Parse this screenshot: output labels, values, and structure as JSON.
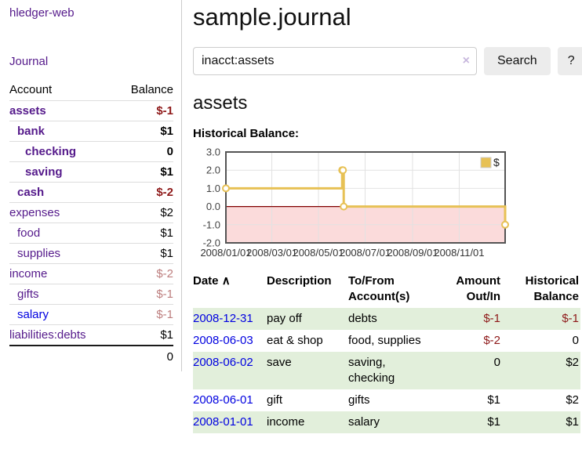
{
  "app": {
    "title": "hledger-web",
    "journal_nav": "Journal"
  },
  "sidebar_accounts": {
    "col_account": "Account",
    "col_balance": "Balance",
    "rows": [
      {
        "name": "assets",
        "balance": "$-1",
        "level": 1,
        "bold": true,
        "neg": "strong"
      },
      {
        "name": "bank",
        "balance": "$1",
        "level": 2,
        "bold": true,
        "neg": ""
      },
      {
        "name": "checking",
        "balance": "0",
        "level": 3,
        "bold": true,
        "neg": ""
      },
      {
        "name": "saving",
        "balance": "$1",
        "level": 3,
        "bold": true,
        "neg": ""
      },
      {
        "name": "cash",
        "balance": "$-2",
        "level": 2,
        "bold": true,
        "neg": "strong"
      },
      {
        "name": "expenses",
        "balance": "$2",
        "level": 1,
        "bold": false,
        "neg": ""
      },
      {
        "name": "food",
        "balance": "$1",
        "level": 2,
        "bold": false,
        "neg": ""
      },
      {
        "name": "supplies",
        "balance": "$1",
        "level": 2,
        "bold": false,
        "neg": ""
      },
      {
        "name": "income",
        "balance": "$-2",
        "level": 1,
        "bold": false,
        "neg": "dim"
      },
      {
        "name": "gifts",
        "balance": "$-1",
        "level": 2,
        "bold": false,
        "neg": "dim"
      },
      {
        "name": "salary",
        "balance": "$-1",
        "level": 2,
        "bold": false,
        "neg": "dim",
        "unvisited": true
      },
      {
        "name": "liabilities:debts",
        "balance": "$1",
        "level": 1,
        "bold": false,
        "neg": ""
      }
    ],
    "total": "0"
  },
  "main": {
    "title": "sample.journal",
    "search": {
      "value": "inacct:assets",
      "clear_icon": "×",
      "search_button": "Search",
      "help_button": "?"
    },
    "account_heading": "assets",
    "chart_heading": "Historical Balance:"
  },
  "chart_data": {
    "type": "line",
    "title": "Historical Balance",
    "step": true,
    "legend": [
      {
        "label": "$",
        "color": "#E7C155"
      }
    ],
    "legend_position": "top-right",
    "grid": true,
    "y_ticks": [
      "3.0",
      "2.0",
      "1.0",
      "0.0",
      "-1.0",
      "-2.0"
    ],
    "ylim": [
      -2,
      3
    ],
    "x_range_days": [
      0,
      365
    ],
    "x_ticks": [
      {
        "label": "2008/01/01",
        "day": 0
      },
      {
        "label": "2008/03/01",
        "day": 60
      },
      {
        "label": "2008/05/01",
        "day": 121
      },
      {
        "label": "2008/07/01",
        "day": 182
      },
      {
        "label": "2008/09/01",
        "day": 244
      },
      {
        "label": "2008/11/01",
        "day": 305
      }
    ],
    "series": [
      {
        "name": "$",
        "points": [
          {
            "date": "2008-01-01",
            "day": 0,
            "value": 1
          },
          {
            "date": "2008-06-01",
            "day": 152,
            "value": 2
          },
          {
            "date": "2008-06-02",
            "day": 153,
            "value": 2
          },
          {
            "date": "2008-06-03",
            "day": 154,
            "value": 0
          },
          {
            "date": "2008-12-31",
            "day": 365,
            "value": -1
          }
        ]
      }
    ],
    "colors": {
      "line": "#E7C155",
      "marker_fill": "#FFFFFF",
      "negative_region": "#FBDBDB",
      "zero_line": "#800000",
      "grid": "#E2E2E2",
      "border": "#545454"
    }
  },
  "register": {
    "headers": {
      "date": "Date",
      "sort_icon": "∧",
      "description": "Description",
      "account": "To/From Account(s)",
      "amount": "Amount Out/In",
      "balance": "Historical Balance"
    },
    "rows": [
      {
        "date": "2008-12-31",
        "description": "pay off",
        "account": "debts",
        "amount": "$-1",
        "balance": "$-1",
        "amount_negative": true,
        "balance_negative": true
      },
      {
        "date": "2008-06-03",
        "description": "eat & shop",
        "account": "food, supplies",
        "amount": "$-2",
        "balance": "0",
        "amount_negative": true,
        "balance_negative": false
      },
      {
        "date": "2008-06-02",
        "description": "save",
        "account": "saving, checking",
        "amount": "0",
        "balance": "$2",
        "amount_negative": false,
        "balance_negative": false
      },
      {
        "date": "2008-06-01",
        "description": "gift",
        "account": "gifts",
        "amount": "$1",
        "balance": "$2",
        "amount_negative": false,
        "balance_negative": false
      },
      {
        "date": "2008-01-01",
        "description": "income",
        "account": "salary",
        "amount": "$1",
        "balance": "$1",
        "amount_negative": false,
        "balance_negative": false
      }
    ]
  }
}
